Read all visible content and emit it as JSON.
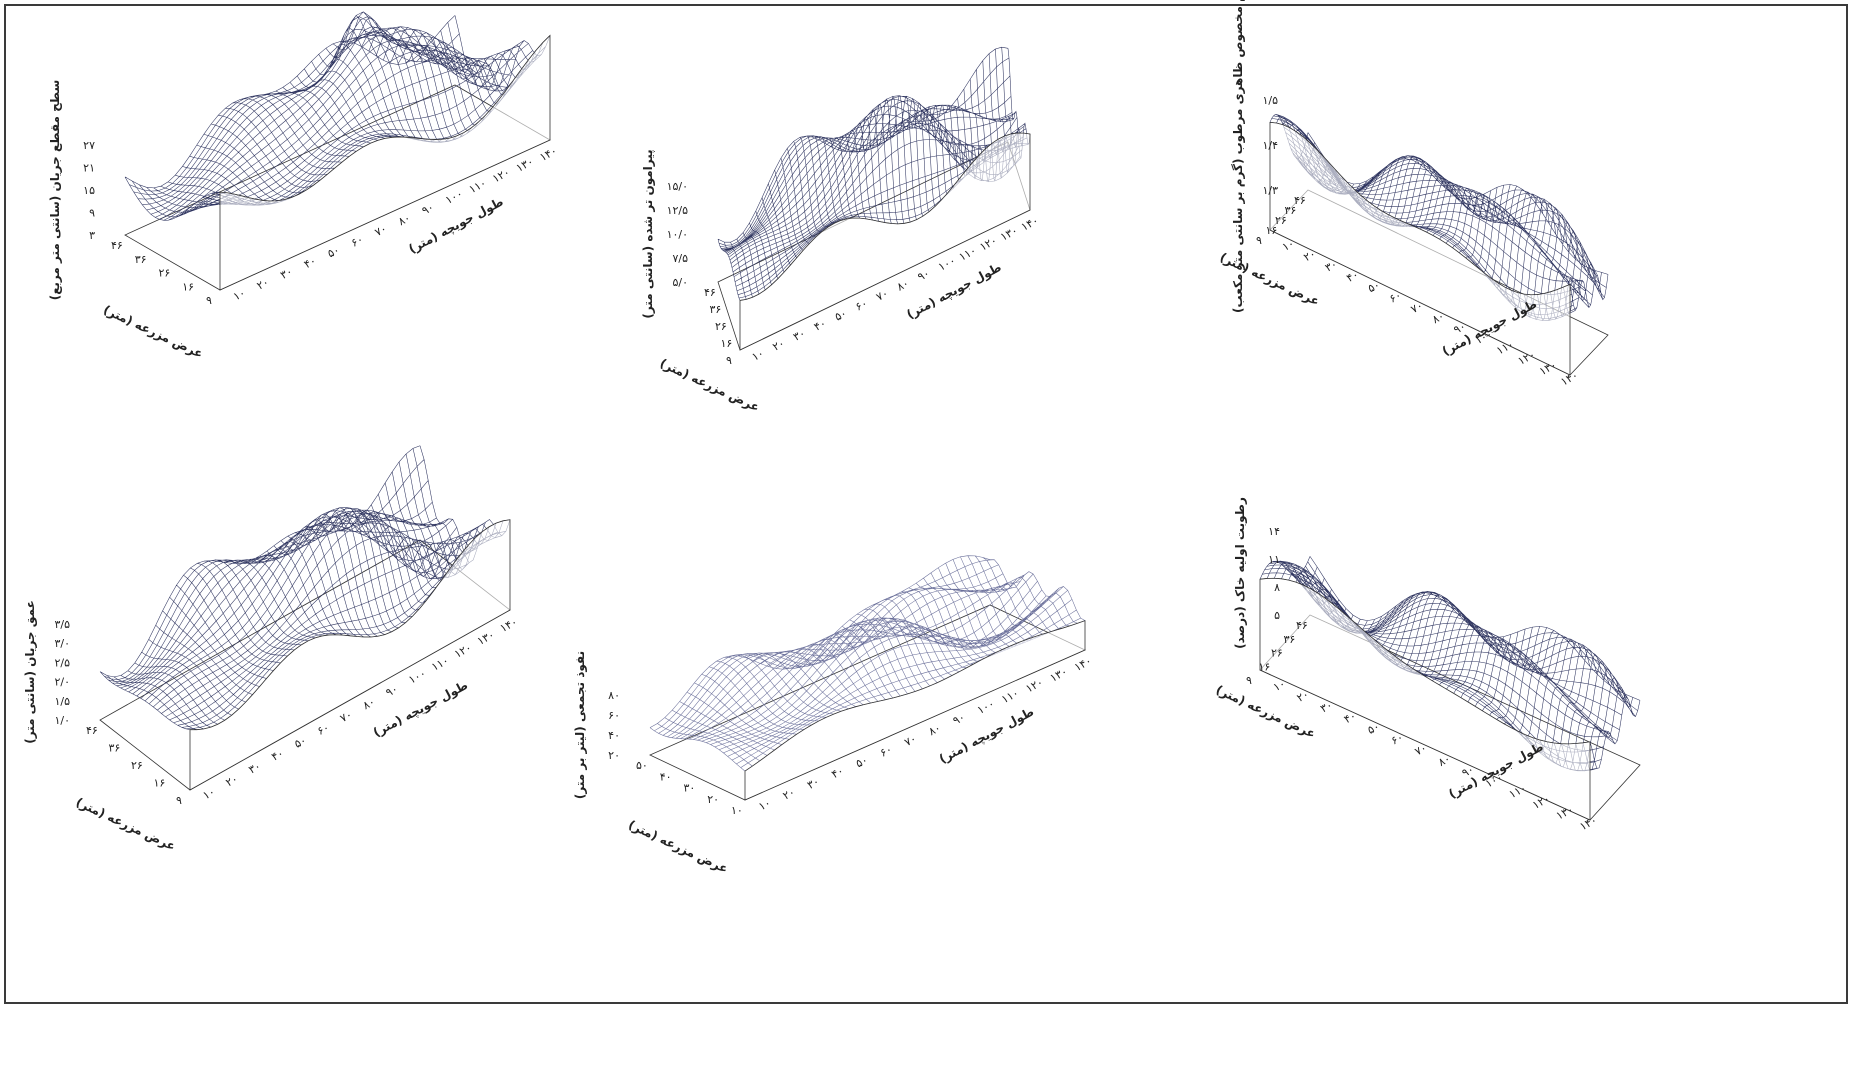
{
  "chart_data": [
    {
      "type": "surface",
      "zlabel": "سطح مقطع جریان (سانتی متر مربع)",
      "xlabel": "طول جویچه (متر)",
      "ylabel": "عرض مزرعه (متر)",
      "x_ticks": [
        "۱۰",
        "۲۰",
        "۳۰",
        "۴۰",
        "۵۰",
        "۶۰",
        "۷۰",
        "۸۰",
        "۹۰",
        "۱۰۰",
        "۱۱۰",
        "۱۲۰",
        "۱۳۰",
        "۱۴۰"
      ],
      "y_ticks": [
        "۹",
        "۱۶",
        "۲۶",
        "۳۶",
        "۴۶"
      ],
      "z_ticks": [
        "۳",
        "۹",
        "۱۵",
        "۲۱",
        "۲۷"
      ],
      "zlim": [
        3,
        27
      ]
    },
    {
      "type": "surface",
      "zlabel": "پیرامون تر شده (سانتی متر)",
      "xlabel": "طول جویچه (متر)",
      "ylabel": "عرض مزرعه (متر)",
      "x_ticks": [
        "۱۰",
        "۲۰",
        "۳۰",
        "۴۰",
        "۵۰",
        "۶۰",
        "۷۰",
        "۸۰",
        "۹۰",
        "۱۰۰",
        "۱۱۰",
        "۱۲۰",
        "۱۳۰",
        "۱۴۰"
      ],
      "y_ticks": [
        "۹",
        "۱۶",
        "۲۶",
        "۳۶",
        "۴۶"
      ],
      "z_ticks": [
        "۵/۰",
        "۷/۵",
        "۱۰/۰",
        "۱۲/۵",
        "۱۵/۰"
      ],
      "zlim": [
        5,
        15
      ]
    },
    {
      "type": "surface",
      "zlabel": "جرم مخصوص ظاهری مرطوب (گرم بر سانتی متر مکعب)",
      "xlabel": "طول جویچه (متر)",
      "ylabel": "عرض مزرعه (متر)",
      "x_ticks": [
        "۱۰",
        "۲۰",
        "۳۰",
        "۴۰",
        "۵۰",
        "۶۰",
        "۷۰",
        "۸۰",
        "۹۰",
        "۱۰۰",
        "۱۱۰",
        "۱۲۰",
        "۱۳۰",
        "۱۴۰"
      ],
      "y_ticks": [
        "۹",
        "۱۶",
        "۲۶",
        "۳۶",
        "۴۶"
      ],
      "z_ticks": [
        "۱/۳",
        "۱/۴",
        "۱/۵"
      ],
      "zlim": [
        1.3,
        1.5
      ]
    },
    {
      "type": "surface",
      "zlabel": "عمق جریان (سانتی متر)",
      "xlabel": "طول جویچه (متر)",
      "ylabel": "عرض مزرعه (متر)",
      "x_ticks": [
        "۱۰",
        "۲۰",
        "۳۰",
        "۴۰",
        "۵۰",
        "۶۰",
        "۷۰",
        "۸۰",
        "۹۰",
        "۱۰۰",
        "۱۱۰",
        "۱۲۰",
        "۱۳۰",
        "۱۴۰"
      ],
      "y_ticks": [
        "۹",
        "۱۶",
        "۲۶",
        "۳۶",
        "۴۶"
      ],
      "z_ticks": [
        "۱/۰",
        "۱/۵",
        "۲/۰",
        "۲/۵",
        "۳/۰",
        "۳/۵"
      ],
      "zlim": [
        1.0,
        3.5
      ]
    },
    {
      "type": "surface",
      "zlabel": "نفوذ تجمعی (لیتر بر متر)",
      "xlabel": "طول جویچه (متر)",
      "ylabel": "عرض مزرعه (متر)",
      "x_ticks": [
        "۱۰",
        "۲۰",
        "۳۰",
        "۴۰",
        "۵۰",
        "۶۰",
        "۷۰",
        "۸۰",
        "۹۰",
        "۱۰۰",
        "۱۱۰",
        "۱۲۰",
        "۱۳۰",
        "۱۴۰"
      ],
      "y_ticks": [
        "۱۰",
        "۲۰",
        "۳۰",
        "۴۰",
        "۵۰"
      ],
      "z_ticks": [
        "۲۰",
        "۴۰",
        "۶۰",
        "۸۰"
      ],
      "zlim": [
        20,
        80
      ]
    },
    {
      "type": "surface",
      "zlabel": "رطوبت اولیه خاک (درصد)",
      "xlabel": "طول جویچه (متر)",
      "ylabel": "عرض مزرعه (متر)",
      "x_ticks": [
        "۱۰",
        "۲۰",
        "۳۰",
        "۴۰",
        "۵۰",
        "۶۰",
        "۷۰",
        "۸۰",
        "۹۰",
        "۱۰۰",
        "۱۱۰",
        "۱۲۰",
        "۱۳۰",
        "۱۴۰"
      ],
      "y_ticks": [
        "۹",
        "۱۶",
        "۲۶",
        "۳۶",
        "۴۶"
      ],
      "z_ticks": [
        "۵",
        "۸",
        "۱۱",
        "۱۴"
      ],
      "zlim": [
        5,
        14
      ]
    }
  ],
  "colors": {
    "mesh": "#2f3560",
    "mesh_light": "#6a6f9a",
    "axis": "#333333"
  }
}
